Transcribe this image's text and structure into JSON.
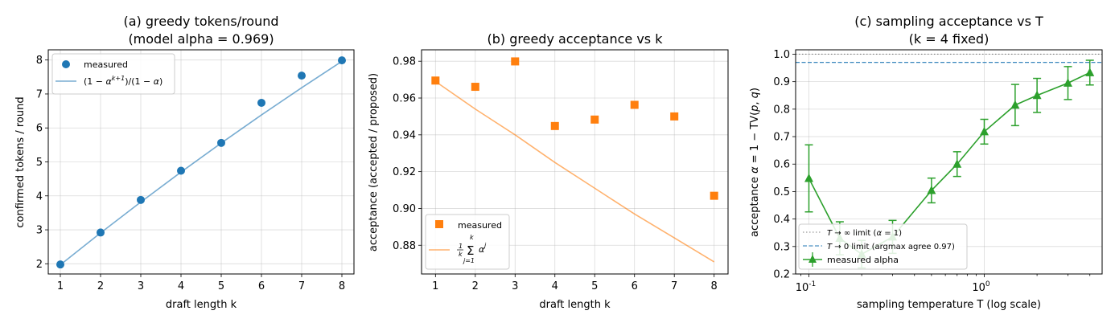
{
  "chart_data": [
    {
      "type": "line",
      "title": "(a) greedy tokens/round\n(model alpha = 0.969)",
      "xlabel": "draft length k",
      "ylabel": "confirmed tokens / round",
      "xlim": [
        0.7,
        8.3
      ],
      "ylim": [
        1.7,
        8.3
      ],
      "xticks": [
        1,
        2,
        3,
        4,
        5,
        6,
        7,
        8
      ],
      "yticks": [
        2,
        3,
        4,
        5,
        6,
        7,
        8
      ],
      "grid": true,
      "legend_position": "top-left",
      "series": [
        {
          "name": "measured",
          "kind": "scatter",
          "marker": "circle",
          "color": "#1f77b4",
          "x": [
            1,
            2,
            3,
            4,
            5,
            6,
            7,
            8
          ],
          "y": [
            1.98,
            2.92,
            3.88,
            4.74,
            5.56,
            6.74,
            7.54,
            7.99
          ]
        },
        {
          "name": "(1 − α^{k+1})/(1 − α)",
          "kind": "line",
          "color": "#1f77b4",
          "alpha": 0.6,
          "x": [
            1,
            2,
            3,
            4,
            5,
            6,
            7,
            8
          ],
          "y": [
            1.969,
            2.908,
            3.818,
            4.7,
            5.554,
            6.382,
            7.184,
            7.961
          ]
        }
      ]
    },
    {
      "type": "line",
      "title": "(b) greedy acceptance vs k",
      "xlabel": "draft length k",
      "ylabel": "acceptance (accepted / proposed)",
      "xlim": [
        0.65,
        8.35
      ],
      "ylim": [
        0.8644,
        0.9862
      ],
      "xticks": [
        1,
        2,
        3,
        4,
        5,
        6,
        7,
        8
      ],
      "yticks": [
        0.88,
        0.9,
        0.92,
        0.94,
        0.96,
        0.98
      ],
      "ytick_labels": [
        "0.88",
        "0.90",
        "0.92",
        "0.94",
        "0.96",
        "0.98"
      ],
      "grid": true,
      "legend_position": "bottom-left",
      "series": [
        {
          "name": "measured",
          "kind": "scatter",
          "marker": "square",
          "color": "#ff7f0e",
          "x": [
            1,
            2,
            3,
            4,
            5,
            6,
            7,
            8
          ],
          "y": [
            0.9695,
            0.9661,
            0.9799,
            0.9448,
            0.9483,
            0.9563,
            0.95,
            0.9069
          ]
        },
        {
          "name": "(1/k) Σ_{j=1}^{k} α^j",
          "kind": "line",
          "color": "#ff7f0e",
          "alpha": 0.6,
          "x": [
            1,
            2,
            3,
            4,
            5,
            6,
            7,
            8
          ],
          "y": [
            0.969,
            0.954,
            0.94,
            0.925,
            0.911,
            0.897,
            0.884,
            0.871
          ]
        }
      ]
    },
    {
      "type": "line",
      "title": "(c) sampling acceptance vs T\n(k = 4 fixed)",
      "xlabel": "sampling temperature T (log scale)",
      "ylabel": "acceptance α = 1 − TV(p, q)",
      "xscale": "log",
      "xlim": [
        0.084,
        4.7
      ],
      "ylim": [
        0.2,
        1.016
      ],
      "xticks": [
        0.1,
        1
      ],
      "xtick_labels": [
        "10^-1",
        "10^0"
      ],
      "yticks": [
        0.2,
        0.3,
        0.4,
        0.5,
        0.6,
        0.7,
        0.8,
        0.9,
        1.0
      ],
      "ytick_labels": [
        "0.2",
        "0.3",
        "0.4",
        "0.5",
        "0.6",
        "0.7",
        "0.8",
        "0.9",
        "1.0"
      ],
      "grid": true,
      "legend_position": "bottom-left",
      "reference_lines": [
        {
          "name": "T → ∞ limit (α = 1)",
          "y": 1.0,
          "style": "dotted",
          "color": "#808080"
        },
        {
          "name": "T → 0 limit (argmax agree 0.97)",
          "y": 0.97,
          "style": "dashed",
          "color": "#1f77b4"
        }
      ],
      "series": [
        {
          "name": "measured alpha",
          "kind": "errorbar",
          "marker": "triangle",
          "color": "#2ca02c",
          "x": [
            0.1,
            0.15,
            0.2,
            0.3,
            0.5,
            0.7,
            1.0,
            1.5,
            2.0,
            3.0,
            4.0
          ],
          "y": [
            0.548,
            0.33,
            0.272,
            0.335,
            0.504,
            0.6,
            0.718,
            0.815,
            0.85,
            0.895,
            0.933
          ],
          "yerr": [
            0.122,
            0.06,
            0.05,
            0.06,
            0.045,
            0.045,
            0.045,
            0.075,
            0.062,
            0.06,
            0.045
          ]
        }
      ]
    }
  ]
}
